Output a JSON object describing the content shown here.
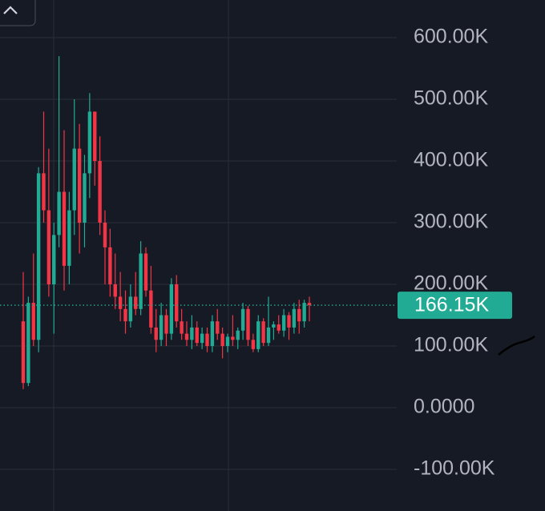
{
  "chart_data": {
    "type": "candlestick",
    "up_color": "#22ab94",
    "down_color": "#f23645",
    "grid": true,
    "ylim": [
      -167500,
      661000
    ],
    "yticks": [
      {
        "value": -100000,
        "label": "-100.00K"
      },
      {
        "value": 0,
        "label": "0.0000"
      },
      {
        "value": 100000,
        "label": "100.00K"
      },
      {
        "value": 200000,
        "label": "200.00K"
      },
      {
        "value": 300000,
        "label": "300.00K"
      },
      {
        "value": 400000,
        "label": "400.00K"
      },
      {
        "value": 500000,
        "label": "500.00K"
      },
      {
        "value": 600000,
        "label": "600.00K"
      }
    ],
    "last_price": {
      "value": 166150,
      "label": "166.15K"
    },
    "open": [
      140000,
      40000,
      170000,
      110000,
      380000,
      320000,
      200000,
      280000,
      350000,
      230000,
      320000,
      420000,
      300000,
      380000,
      480000,
      400000,
      300000,
      260000,
      200000,
      180000,
      160000,
      140000,
      180000,
      160000,
      250000,
      190000,
      130000,
      110000,
      150000,
      120000,
      200000,
      140000,
      120000,
      110000,
      130000,
      105000,
      120000,
      100000,
      140000,
      120000,
      100000,
      115000,
      110000,
      125000,
      160000,
      110000,
      95000,
      140000,
      105000,
      130000,
      135000,
      125000,
      150000,
      130000,
      160000,
      140000,
      170000
    ],
    "high": [
      220000,
      180000,
      250000,
      390000,
      480000,
      420000,
      300000,
      570000,
      450000,
      350000,
      500000,
      460000,
      410000,
      510000,
      480000,
      440000,
      320000,
      290000,
      250000,
      220000,
      190000,
      200000,
      220000,
      270000,
      260000,
      230000,
      160000,
      170000,
      160000,
      210000,
      215000,
      160000,
      140000,
      150000,
      140000,
      130000,
      130000,
      150000,
      160000,
      130000,
      120000,
      150000,
      130000,
      170000,
      165000,
      120000,
      150000,
      145000,
      180000,
      140000,
      150000,
      160000,
      155000,
      170000,
      175000,
      175000,
      180000
    ],
    "low": [
      30000,
      35000,
      100000,
      90000,
      300000,
      180000,
      120000,
      260000,
      190000,
      200000,
      280000,
      250000,
      260000,
      340000,
      360000,
      280000,
      200000,
      180000,
      160000,
      140000,
      120000,
      130000,
      150000,
      150000,
      180000,
      120000,
      90000,
      100000,
      100000,
      110000,
      130000,
      110000,
      100000,
      95000,
      100000,
      95000,
      90000,
      90000,
      110000,
      80000,
      90000,
      100000,
      95000,
      110000,
      100000,
      90000,
      90000,
      100000,
      100000,
      110000,
      120000,
      115000,
      110000,
      120000,
      120000,
      130000,
      140000
    ],
    "close": [
      40000,
      170000,
      110000,
      380000,
      320000,
      200000,
      280000,
      350000,
      230000,
      320000,
      420000,
      300000,
      380000,
      480000,
      400000,
      300000,
      260000,
      200000,
      180000,
      160000,
      140000,
      180000,
      160000,
      250000,
      190000,
      130000,
      110000,
      150000,
      120000,
      200000,
      140000,
      120000,
      110000,
      130000,
      105000,
      120000,
      100000,
      140000,
      120000,
      100000,
      115000,
      110000,
      125000,
      160000,
      110000,
      95000,
      140000,
      105000,
      130000,
      135000,
      125000,
      150000,
      130000,
      160000,
      140000,
      170000,
      166150
    ]
  }
}
